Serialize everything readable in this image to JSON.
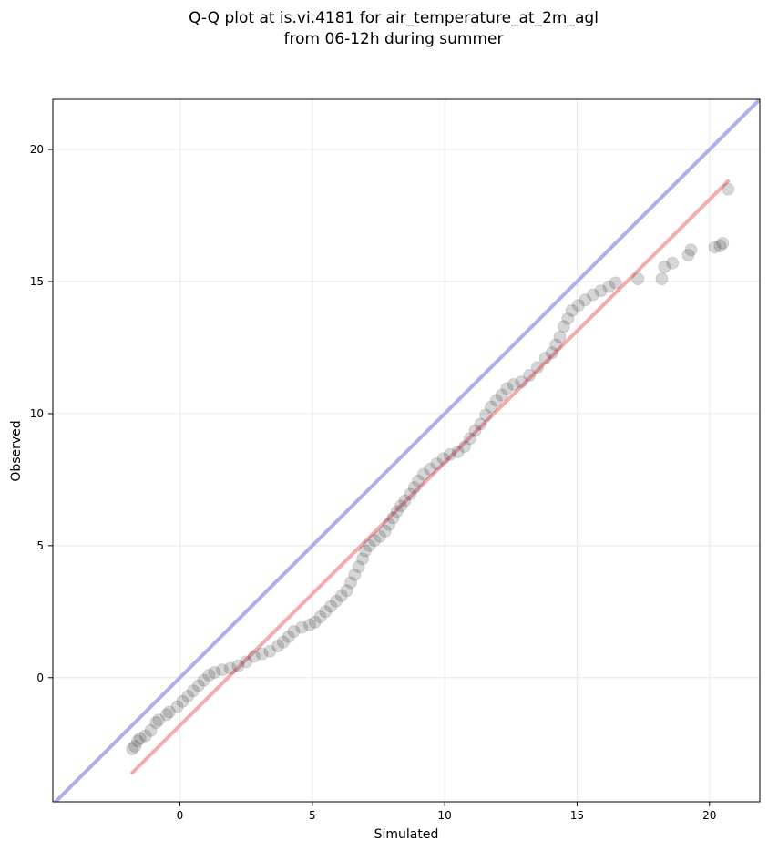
{
  "chart_data": {
    "type": "scatter",
    "title": "Q-Q plot at is.vi.4181 for air_temperature_at_2m_agl",
    "subtitle": "from 06-12h during summer",
    "xlabel": "Simulated",
    "ylabel": "Observed",
    "xlim": [
      -4.8,
      21.9
    ],
    "ylim": [
      -4.7,
      21.9
    ],
    "xticks": [
      0,
      5,
      10,
      15,
      20
    ],
    "yticks": [
      0,
      5,
      10,
      15,
      20
    ],
    "grid": true,
    "colors": {
      "points": "#333333",
      "identity_line": "#aaaaee",
      "fit_line": "#f4a6aa",
      "grid": "#ebebeb"
    },
    "identity_line": {
      "x": [
        -4.8,
        21.9
      ],
      "y": [
        -4.8,
        21.9
      ]
    },
    "fit_line": {
      "x": [
        -1.8,
        20.7
      ],
      "y": [
        -3.6,
        18.8
      ]
    },
    "points": [
      [
        -1.8,
        -2.7
      ],
      [
        -1.7,
        -2.6
      ],
      [
        -1.6,
        -2.4
      ],
      [
        -1.5,
        -2.3
      ],
      [
        -1.3,
        -2.2
      ],
      [
        -1.1,
        -2.0
      ],
      [
        -0.9,
        -1.7
      ],
      [
        -0.8,
        -1.6
      ],
      [
        -0.5,
        -1.4
      ],
      [
        -0.4,
        -1.3
      ],
      [
        -0.1,
        -1.1
      ],
      [
        0.1,
        -0.9
      ],
      [
        0.3,
        -0.7
      ],
      [
        0.5,
        -0.5
      ],
      [
        0.7,
        -0.3
      ],
      [
        0.9,
        -0.1
      ],
      [
        1.1,
        0.1
      ],
      [
        1.3,
        0.2
      ],
      [
        1.6,
        0.3
      ],
      [
        1.9,
        0.35
      ],
      [
        2.2,
        0.45
      ],
      [
        2.5,
        0.6
      ],
      [
        2.8,
        0.8
      ],
      [
        3.1,
        0.9
      ],
      [
        3.4,
        1.0
      ],
      [
        3.7,
        1.2
      ],
      [
        3.9,
        1.35
      ],
      [
        4.1,
        1.55
      ],
      [
        4.3,
        1.75
      ],
      [
        4.6,
        1.9
      ],
      [
        4.9,
        2.0
      ],
      [
        5.1,
        2.1
      ],
      [
        5.3,
        2.3
      ],
      [
        5.5,
        2.5
      ],
      [
        5.7,
        2.7
      ],
      [
        5.9,
        2.9
      ],
      [
        6.1,
        3.1
      ],
      [
        6.3,
        3.3
      ],
      [
        6.45,
        3.6
      ],
      [
        6.6,
        3.9
      ],
      [
        6.75,
        4.2
      ],
      [
        6.9,
        4.5
      ],
      [
        7.0,
        4.8
      ],
      [
        7.15,
        5.0
      ],
      [
        7.35,
        5.2
      ],
      [
        7.55,
        5.35
      ],
      [
        7.75,
        5.55
      ],
      [
        7.9,
        5.8
      ],
      [
        8.05,
        6.05
      ],
      [
        8.2,
        6.3
      ],
      [
        8.35,
        6.5
      ],
      [
        8.5,
        6.7
      ],
      [
        8.7,
        6.95
      ],
      [
        8.85,
        7.2
      ],
      [
        9.0,
        7.45
      ],
      [
        9.2,
        7.7
      ],
      [
        9.45,
        7.9
      ],
      [
        9.7,
        8.1
      ],
      [
        9.95,
        8.3
      ],
      [
        10.2,
        8.45
      ],
      [
        10.5,
        8.55
      ],
      [
        10.75,
        8.75
      ],
      [
        10.95,
        9.05
      ],
      [
        11.15,
        9.35
      ],
      [
        11.35,
        9.6
      ],
      [
        11.55,
        9.95
      ],
      [
        11.75,
        10.25
      ],
      [
        11.95,
        10.5
      ],
      [
        12.15,
        10.7
      ],
      [
        12.35,
        10.95
      ],
      [
        12.6,
        11.1
      ],
      [
        12.9,
        11.2
      ],
      [
        13.2,
        11.45
      ],
      [
        13.5,
        11.75
      ],
      [
        13.8,
        12.1
      ],
      [
        14.05,
        12.3
      ],
      [
        14.2,
        12.6
      ],
      [
        14.35,
        12.9
      ],
      [
        14.5,
        13.3
      ],
      [
        14.65,
        13.6
      ],
      [
        14.8,
        13.9
      ],
      [
        15.05,
        14.1
      ],
      [
        15.3,
        14.3
      ],
      [
        15.6,
        14.5
      ],
      [
        15.9,
        14.65
      ],
      [
        16.2,
        14.8
      ],
      [
        16.45,
        14.95
      ],
      [
        17.3,
        15.1
      ],
      [
        18.2,
        15.1
      ],
      [
        18.3,
        15.55
      ],
      [
        18.6,
        15.7
      ],
      [
        19.2,
        16.0
      ],
      [
        19.3,
        16.2
      ],
      [
        20.2,
        16.3
      ],
      [
        20.4,
        16.35
      ],
      [
        20.5,
        16.45
      ],
      [
        20.7,
        18.5
      ]
    ]
  }
}
